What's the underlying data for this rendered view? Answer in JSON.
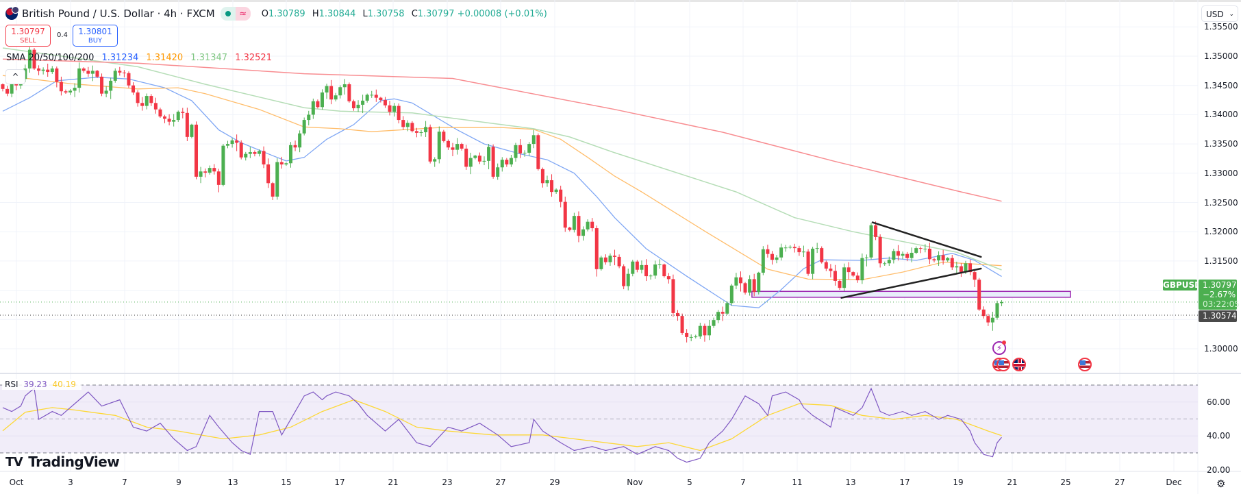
{
  "header": {
    "title": "British Pound / U.S. Dollar · 4h · FXCM",
    "market_status_icon": "market-open-dot",
    "delay_icon": "≈",
    "ohlc": {
      "o_label": "O",
      "o": "1.30789",
      "h_label": "H",
      "h": "1.30844",
      "l_label": "L",
      "l": "1.30758",
      "c_label": "C",
      "c": "1.30797",
      "change": "+0.00008 (+0.01%)"
    }
  },
  "trade": {
    "sell_price": "1.30797",
    "sell_label": "SELL",
    "spread": "0.4",
    "buy_price": "1.30801",
    "buy_label": "BUY"
  },
  "sma_legend": {
    "label": "SMA 20/50/100/200",
    "v20": "1.31234",
    "v50": "1.31420",
    "v100": "1.31347",
    "v200": "1.32521"
  },
  "collapse_icon": "^",
  "currency": {
    "value": "USD",
    "chevron": "⌄"
  },
  "price_axis": [
    "1.35500",
    "1.35000",
    "1.34500",
    "1.34000",
    "1.33500",
    "1.33000",
    "1.32500",
    "1.32000",
    "1.31500",
    "1.30000"
  ],
  "last_price": {
    "symbol": "GBPUSD",
    "price": "1.30797",
    "change": "−2.67%",
    "countdown": "03:22:05",
    "prev_close": "1.30574"
  },
  "rsi_legend": {
    "label": "RSI",
    "rsi": "39.23",
    "ma": "40.19"
  },
  "rsi_axis": [
    "60.00",
    "40.00",
    "20.00"
  ],
  "time_axis": [
    "Oct",
    "3",
    "7",
    "9",
    "13",
    "15",
    "17",
    "21",
    "23",
    "27",
    "29",
    "Nov",
    "5",
    "7",
    "11",
    "13",
    "17",
    "19",
    "21",
    "25",
    "27",
    "Dec"
  ],
  "logo": "TradingView",
  "settings_icon": "⚙",
  "colors": {
    "up": "#4caf50",
    "down": "#f23645",
    "sma20": "#2962ff",
    "sma50": "#ff9800",
    "sma100": "#81c784",
    "sma200": "#f23645",
    "rsi": "#7e57c2",
    "rsi_ma": "#fdd835",
    "zone": "#9c27b0"
  },
  "chart_data": {
    "type": "candlestick",
    "symbol": "GBPUSD",
    "interval": "4h",
    "ylim": [
      1.2955,
      1.356
    ],
    "closes": [
      1.3444,
      1.3436,
      1.3456,
      1.345,
      1.3461,
      1.3479,
      1.3511,
      1.3479,
      1.3475,
      1.3477,
      1.3473,
      1.3479,
      1.3456,
      1.344,
      1.3438,
      1.3441,
      1.3446,
      1.3479,
      1.3475,
      1.347,
      1.3475,
      1.3465,
      1.3436,
      1.3441,
      1.3458,
      1.3475,
      1.3472,
      1.3471,
      1.345,
      1.3438,
      1.342,
      1.3415,
      1.3432,
      1.342,
      1.3409,
      1.3397,
      1.3393,
      1.3388,
      1.3391,
      1.3405,
      1.3403,
      1.3362,
      1.3383,
      1.3294,
      1.3303,
      1.3301,
      1.3309,
      1.3303,
      1.328,
      1.3347,
      1.335,
      1.3356,
      1.3352,
      1.3327,
      1.3333,
      1.3336,
      1.3333,
      1.3338,
      1.3315,
      1.3283,
      1.326,
      1.3319,
      1.3315,
      1.3317,
      1.3348,
      1.3344,
      1.3368,
      1.3391,
      1.34,
      1.3423,
      1.3413,
      1.3438,
      1.3449,
      1.3426,
      1.3433,
      1.3447,
      1.3452,
      1.3423,
      1.3411,
      1.3417,
      1.3424,
      1.3434,
      1.3434,
      1.3429,
      1.3425,
      1.3416,
      1.3405,
      1.3415,
      1.3391,
      1.3379,
      1.3386,
      1.3372,
      1.3369,
      1.337,
      1.3379,
      1.332,
      1.3324,
      1.3371,
      1.3355,
      1.3344,
      1.334,
      1.335,
      1.3342,
      1.3311,
      1.3326,
      1.333,
      1.332,
      1.3321,
      1.3345,
      1.3294,
      1.331,
      1.3323,
      1.3315,
      1.3326,
      1.3348,
      1.3334,
      1.3335,
      1.335,
      1.3365,
      1.3307,
      1.3283,
      1.3288,
      1.3268,
      1.3272,
      1.3251,
      1.3207,
      1.3203,
      1.3227,
      1.3193,
      1.3204,
      1.3217,
      1.3206,
      1.3136,
      1.3156,
      1.3148,
      1.3159,
      1.3157,
      1.3141,
      1.3107,
      1.3128,
      1.3149,
      1.3135,
      1.3143,
      1.3124,
      1.3125,
      1.3144,
      1.3144,
      1.3124,
      1.3119,
      1.3061,
      1.3056,
      1.3027,
      1.302,
      1.302,
      1.3021,
      1.3039,
      1.3023,
      1.3039,
      1.3049,
      1.3063,
      1.306,
      1.3078,
      1.3108,
      1.3122,
      1.3112,
      1.3096,
      1.3119,
      1.3097,
      1.313,
      1.317,
      1.3162,
      1.3152,
      1.3156,
      1.3173,
      1.3173,
      1.3174,
      1.3172,
      1.3165,
      1.3166,
      1.3128,
      1.3171,
      1.3172,
      1.3148,
      1.3137,
      1.3133,
      1.3116,
      1.3104,
      1.3139,
      1.3131,
      1.3125,
      1.3117,
      1.3155,
      1.3156,
      1.3211,
      1.3191,
      1.3146,
      1.3146,
      1.3152,
      1.3167,
      1.3159,
      1.3162,
      1.3155,
      1.3164,
      1.3172,
      1.3171,
      1.3171,
      1.3153,
      1.3151,
      1.316,
      1.3151,
      1.3155,
      1.3139,
      1.3141,
      1.3131,
      1.3146,
      1.3131,
      1.3118,
      1.3067,
      1.3056,
      1.3045,
      1.3053,
      1.3078,
      1.30797
    ],
    "sma": [
      {
        "name": "SMA 20",
        "points": [
          [
            0,
            1.3406
          ],
          [
            6,
            1.3429
          ],
          [
            12,
            1.3458
          ],
          [
            21,
            1.3464
          ],
          [
            28,
            1.3461
          ],
          [
            36,
            1.3446
          ],
          [
            42,
            1.3424
          ],
          [
            48,
            1.3374
          ],
          [
            53,
            1.3352
          ],
          [
            60,
            1.333
          ],
          [
            63,
            1.3321
          ],
          [
            67,
            1.3327
          ],
          [
            72,
            1.3358
          ],
          [
            78,
            1.3383
          ],
          [
            84,
            1.3424
          ],
          [
            87,
            1.3427
          ],
          [
            91,
            1.342
          ],
          [
            96,
            1.3397
          ],
          [
            101,
            1.3374
          ],
          [
            107,
            1.335
          ],
          [
            115,
            1.3333
          ],
          [
            121,
            1.3323
          ],
          [
            127,
            1.33
          ],
          [
            132,
            1.326
          ],
          [
            136,
            1.3224
          ],
          [
            143,
            1.3171
          ],
          [
            152,
            1.3124
          ],
          [
            159,
            1.3089
          ],
          [
            162,
            1.3074
          ],
          [
            168,
            1.307
          ],
          [
            173,
            1.3101
          ],
          [
            178,
            1.3137
          ],
          [
            182,
            1.3152
          ],
          [
            191,
            1.3151
          ],
          [
            197,
            1.3155
          ],
          [
            203,
            1.3151
          ],
          [
            211,
            1.3163
          ],
          [
            216,
            1.3151
          ],
          [
            222,
            1.31234
          ]
        ]
      },
      {
        "name": "SMA 50",
        "points": [
          [
            0,
            1.3467
          ],
          [
            15,
            1.3453
          ],
          [
            30,
            1.3444
          ],
          [
            39,
            1.3446
          ],
          [
            45,
            1.3436
          ],
          [
            57,
            1.3409
          ],
          [
            67,
            1.3379
          ],
          [
            75,
            1.3376
          ],
          [
            82,
            1.3371
          ],
          [
            97,
            1.3378
          ],
          [
            111,
            1.3378
          ],
          [
            118,
            1.3375
          ],
          [
            124,
            1.3358
          ],
          [
            130,
            1.3327
          ],
          [
            136,
            1.3295
          ],
          [
            142,
            1.3268
          ],
          [
            156,
            1.3201
          ],
          [
            170,
            1.3136
          ],
          [
            179,
            1.3119
          ],
          [
            191,
            1.3118
          ],
          [
            200,
            1.3131
          ],
          [
            209,
            1.3148
          ],
          [
            222,
            1.3142
          ]
        ]
      },
      {
        "name": "SMA 100",
        "points": [
          [
            0,
            1.3514
          ],
          [
            30,
            1.3482
          ],
          [
            45,
            1.3452
          ],
          [
            67,
            1.3412
          ],
          [
            75,
            1.3406
          ],
          [
            91,
            1.3403
          ],
          [
            109,
            1.3385
          ],
          [
            118,
            1.3376
          ],
          [
            126,
            1.3362
          ],
          [
            136,
            1.3335
          ],
          [
            163,
            1.3268
          ],
          [
            176,
            1.3224
          ],
          [
            189,
            1.32
          ],
          [
            212,
            1.3165
          ],
          [
            222,
            1.31347
          ]
        ]
      },
      {
        "name": "SMA 200",
        "points": [
          [
            0,
            1.3495
          ],
          [
            30,
            1.3488
          ],
          [
            67,
            1.347
          ],
          [
            100,
            1.3462
          ],
          [
            106,
            1.3453
          ],
          [
            136,
            1.3409
          ],
          [
            160,
            1.337
          ],
          [
            185,
            1.332
          ],
          [
            213,
            1.3268
          ],
          [
            222,
            1.32521
          ]
        ]
      }
    ],
    "drawings": {
      "triangle_upper": [
        [
          193.3,
          1.3216
        ],
        [
          217.4,
          1.3157
        ]
      ],
      "triangle_lower": [
        [
          186.4,
          1.3087
        ],
        [
          217.4,
          1.3137
        ]
      ],
      "zone": {
        "from_bar": 166.5,
        "to_bar": 237.3,
        "top": 1.3098,
        "bottom": 1.3088
      }
    },
    "rsi": {
      "levels": [
        70,
        50,
        30
      ],
      "ylim": [
        20,
        76
      ],
      "rsi_points": [
        [
          0,
          56.7
        ],
        [
          2,
          54.4
        ],
        [
          4,
          57.6
        ],
        [
          5,
          63.6
        ],
        [
          7,
          68.2
        ],
        [
          8,
          49.8
        ],
        [
          11,
          54.4
        ],
        [
          13,
          52.1
        ],
        [
          17,
          61.3
        ],
        [
          19,
          65.9
        ],
        [
          22,
          57.6
        ],
        [
          26,
          61.3
        ],
        [
          29,
          45.2
        ],
        [
          32,
          42.9
        ],
        [
          35,
          47.5
        ],
        [
          38,
          38.3
        ],
        [
          41,
          31.4
        ],
        [
          43,
          33.7
        ],
        [
          46,
          52.1
        ],
        [
          48,
          45.2
        ],
        [
          51,
          36.0
        ],
        [
          53,
          31.4
        ],
        [
          55,
          29.1
        ],
        [
          57,
          54.4
        ],
        [
          60,
          54.4
        ],
        [
          62,
          40.6
        ],
        [
          65,
          54.4
        ],
        [
          67,
          63.6
        ],
        [
          69,
          65.9
        ],
        [
          71,
          61.3
        ],
        [
          72,
          63.6
        ],
        [
          74,
          65.9
        ],
        [
          77,
          63.6
        ],
        [
          79,
          59.0
        ],
        [
          81,
          52.1
        ],
        [
          85,
          42.9
        ],
        [
          88,
          49.8
        ],
        [
          92,
          36.0
        ],
        [
          95,
          33.7
        ],
        [
          99,
          45.2
        ],
        [
          102,
          42.9
        ],
        [
          106,
          47.5
        ],
        [
          110,
          40.6
        ],
        [
          113,
          33.7
        ],
        [
          117,
          36.0
        ],
        [
          118,
          49.8
        ],
        [
          120,
          42.9
        ],
        [
          124,
          36.0
        ],
        [
          127,
          31.4
        ],
        [
          131,
          33.7
        ],
        [
          134,
          31.4
        ],
        [
          138,
          33.7
        ],
        [
          141,
          29.1
        ],
        [
          145,
          33.7
        ],
        [
          148,
          31.4
        ],
        [
          150,
          26.8
        ],
        [
          152,
          24.5
        ],
        [
          155,
          26.8
        ],
        [
          157,
          36.0
        ],
        [
          160,
          42.9
        ],
        [
          162,
          49.8
        ],
        [
          165,
          63.6
        ],
        [
          168,
          59.0
        ],
        [
          170,
          52.1
        ],
        [
          171,
          63.6
        ],
        [
          174,
          65.9
        ],
        [
          177,
          61.3
        ],
        [
          178,
          56.7
        ],
        [
          180,
          52.1
        ],
        [
          184,
          45.2
        ],
        [
          185,
          56.7
        ],
        [
          187,
          54.4
        ],
        [
          189,
          52.1
        ],
        [
          191,
          56.7
        ],
        [
          193,
          68.0
        ],
        [
          195,
          54.4
        ],
        [
          197,
          52.1
        ],
        [
          200,
          54.4
        ],
        [
          202,
          52.1
        ],
        [
          205,
          54.4
        ],
        [
          208,
          49.8
        ],
        [
          210,
          52.1
        ],
        [
          213,
          49.8
        ],
        [
          215,
          42.9
        ],
        [
          216,
          36.0
        ],
        [
          218,
          29.1
        ],
        [
          220,
          27.7
        ],
        [
          221,
          36.0
        ],
        [
          222,
          39.23
        ]
      ],
      "ma_points": [
        [
          0,
          43
        ],
        [
          5,
          54
        ],
        [
          11,
          56.7
        ],
        [
          16,
          55.3
        ],
        [
          25,
          52.1
        ],
        [
          32,
          45.2
        ],
        [
          39,
          42.9
        ],
        [
          49,
          38.3
        ],
        [
          57,
          40.6
        ],
        [
          64,
          45.2
        ],
        [
          71,
          54.4
        ],
        [
          78,
          61.3
        ],
        [
          85,
          54.4
        ],
        [
          92,
          45.2
        ],
        [
          99,
          42.9
        ],
        [
          109,
          40.6
        ],
        [
          120,
          40.6
        ],
        [
          127,
          38.3
        ],
        [
          134,
          36.0
        ],
        [
          141,
          33.7
        ],
        [
          148,
          36.0
        ],
        [
          155,
          31.4
        ],
        [
          162,
          38.3
        ],
        [
          170,
          52.1
        ],
        [
          177,
          59.0
        ],
        [
          184,
          58
        ],
        [
          191,
          52.1
        ],
        [
          198,
          49.8
        ],
        [
          205,
          52.1
        ],
        [
          212,
          49.8
        ],
        [
          219,
          42.9
        ],
        [
          222,
          40.19
        ]
      ]
    }
  }
}
